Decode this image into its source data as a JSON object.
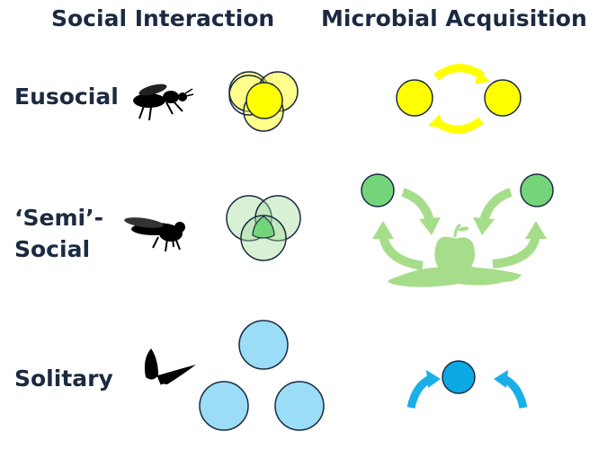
{
  "headers": {
    "social_interaction": "Social Interaction",
    "microbial_acquisition": "Microbial Acquisition"
  },
  "rows": {
    "eusocial": {
      "label": "Eusocial",
      "color": "#ffff00",
      "overlap_fill": "#fbf9b0",
      "stroke": "#1b2a41"
    },
    "semi_social": {
      "label_line1": "‘Semi’-",
      "label_line2": "Social",
      "color": "#74d47a",
      "overlap_fill": "#cdeac8",
      "arrow_color": "#a6dd8a",
      "fruit_color": "#a6dd8a"
    },
    "solitary": {
      "label": "Solitary",
      "color": "#9bdcf6",
      "dot_color": "#0aa9e6",
      "arrow_color": "#1aafe8"
    }
  },
  "icons": [
    "bee-icon",
    "fly-icon",
    "butterfly-icon",
    "apple-icon"
  ]
}
